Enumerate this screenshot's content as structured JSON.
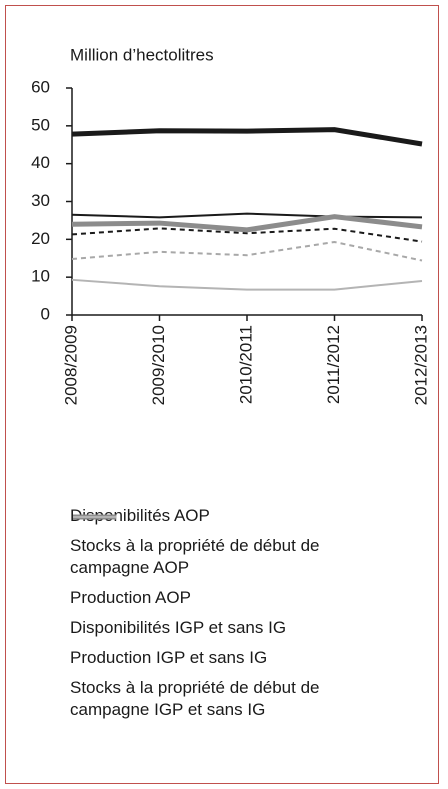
{
  "chart_data": {
    "type": "line",
    "axis_label": "Million d’hectolitres",
    "categories": [
      "2008/2009",
      "2009/2010",
      "2010/2011",
      "2011/2012",
      "2012/2013"
    ],
    "ylim": [
      0,
      60
    ],
    "yticks": [
      0,
      10,
      20,
      30,
      40,
      50,
      60
    ],
    "series": [
      {
        "name": "Disponibilités AOP",
        "color": "#1a1a1a",
        "width": 5,
        "dash": "none",
        "values": [
          47.8,
          48.7,
          48.6,
          49.0,
          45.2
        ]
      },
      {
        "name": "Stocks à la propriété de début de campagne AOP",
        "color": "#1a1a1a",
        "width": 2,
        "dash": "none",
        "values": [
          26.5,
          25.8,
          26.8,
          26.0,
          25.8
        ]
      },
      {
        "name": "Production AOP",
        "color": "#1a1a1a",
        "width": 2,
        "dash": "5 4",
        "values": [
          21.3,
          22.9,
          21.6,
          22.8,
          19.4
        ]
      },
      {
        "name": "Disponibilités IGP et sans IG",
        "color": "#8c8c8c",
        "width": 5,
        "dash": "none",
        "values": [
          24.0,
          24.3,
          22.5,
          26.0,
          23.3
        ]
      },
      {
        "name": "Production IGP et sans IG",
        "color": "#a8a8a8",
        "width": 2,
        "dash": "5 4",
        "values": [
          14.8,
          16.7,
          15.8,
          19.3,
          14.4
        ]
      },
      {
        "name": "Stocks à la propriété de début de campagne IGP et sans IG",
        "color": "#b4b4b4",
        "width": 2,
        "dash": "none",
        "values": [
          9.3,
          7.6,
          6.7,
          6.7,
          9.0
        ]
      }
    ]
  }
}
